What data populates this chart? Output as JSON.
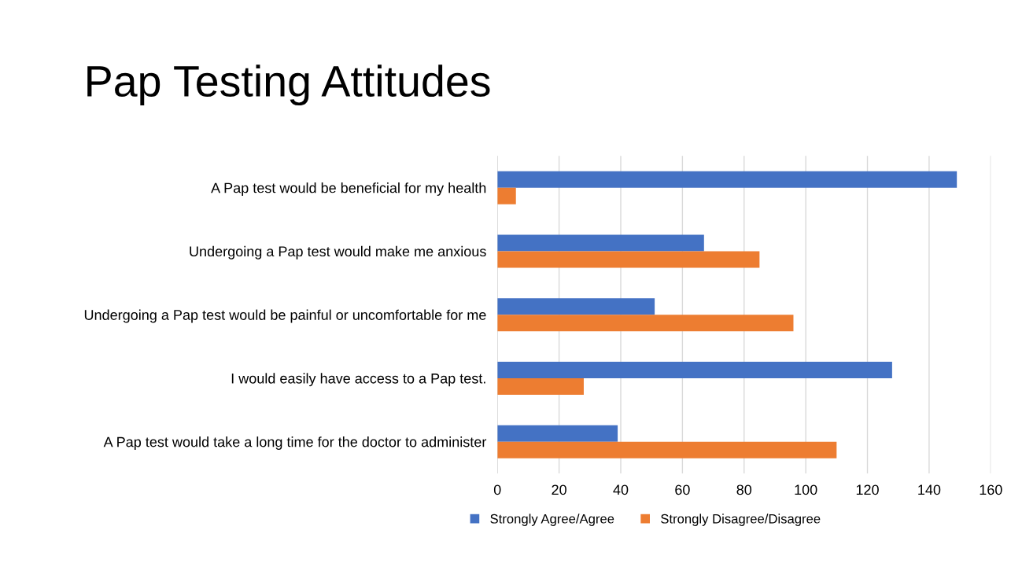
{
  "chart_data": {
    "type": "bar",
    "orientation": "horizontal",
    "title": "Pap Testing Attitudes",
    "categories": [
      "A Pap test would be beneficial for my health",
      "Undergoing a Pap test would make me anxious",
      "Undergoing a Pap test would be painful or uncomfortable for me",
      "I would easily have access to a Pap test.",
      "A Pap test would take a long time for the doctor to administer"
    ],
    "series": [
      {
        "name": "Strongly Agree/Agree",
        "color": "#4472c4",
        "values": [
          149,
          67,
          51,
          128,
          39
        ]
      },
      {
        "name": "Strongly Disagree/Disagree",
        "color": "#ed7d31",
        "values": [
          6,
          85,
          96,
          28,
          110
        ]
      }
    ],
    "xlim": [
      0,
      160
    ],
    "xticks": [
      0,
      20,
      40,
      60,
      80,
      100,
      120,
      140,
      160
    ],
    "grid": "x",
    "legend": "bottom"
  }
}
